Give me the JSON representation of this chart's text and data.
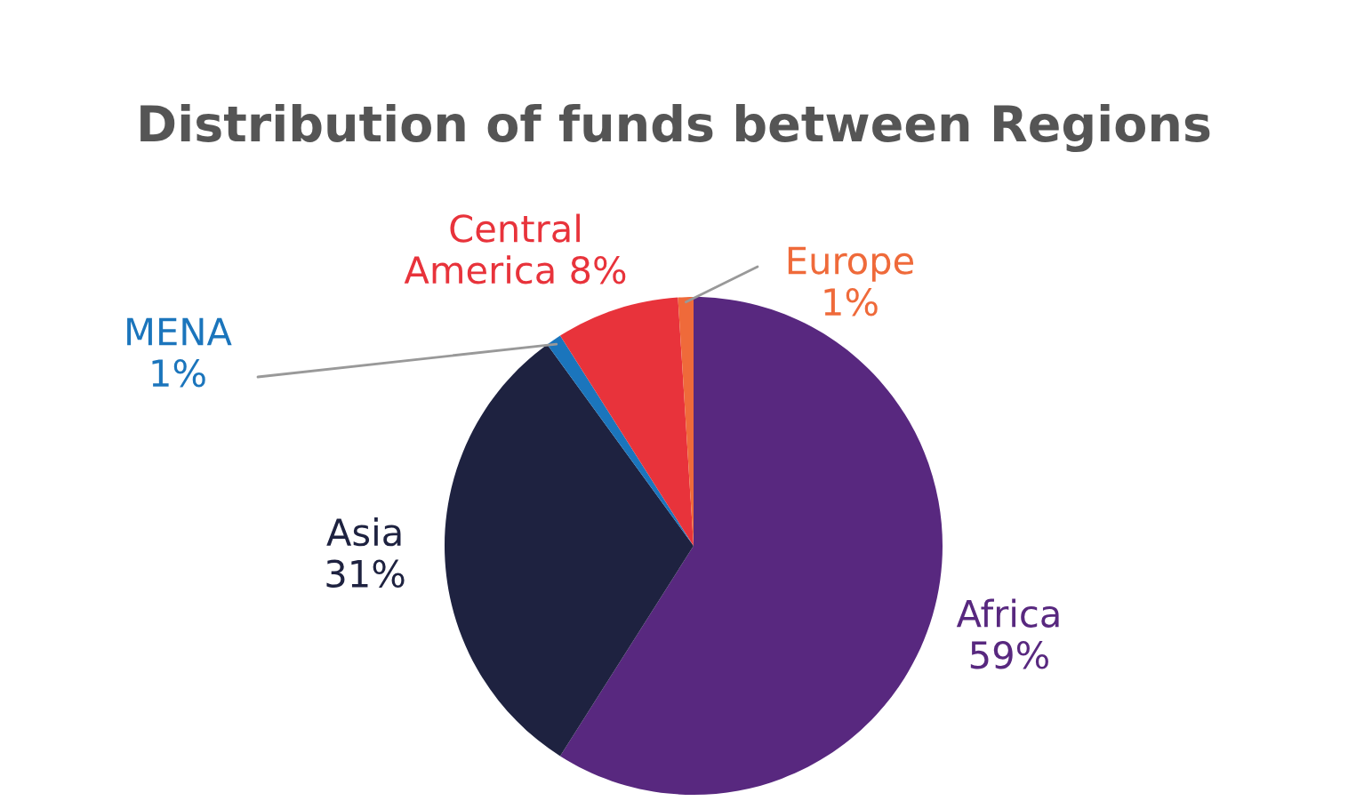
{
  "chart_data": {
    "type": "pie",
    "title": "Distribution of funds between Regions",
    "categories": [
      "Africa",
      "Asia",
      "MENA",
      "Central America",
      "Europe"
    ],
    "values": [
      59,
      31,
      1,
      8,
      1
    ],
    "value_labels": [
      "59%",
      "31%",
      "1%",
      "8%",
      "1%"
    ],
    "colors": [
      "#58287f",
      "#1e2240",
      "#1b75bc",
      "#e8333b",
      "#ef6a3a"
    ],
    "legend": false
  }
}
